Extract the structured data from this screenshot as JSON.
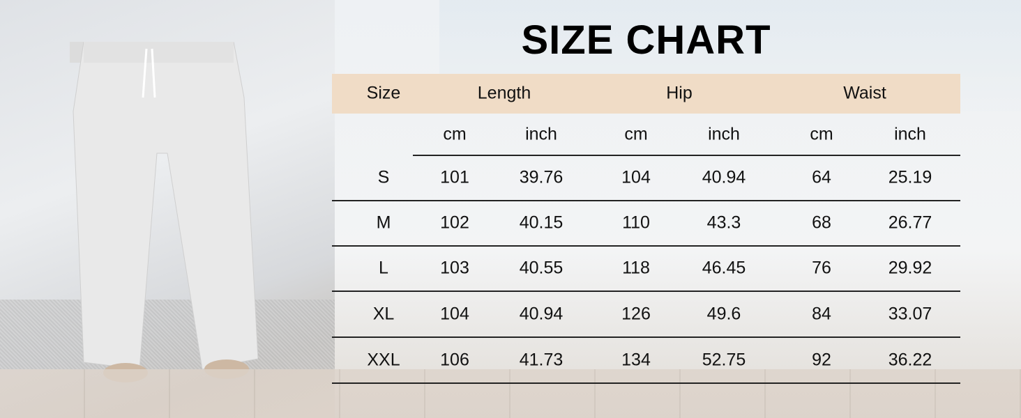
{
  "title": "SIZE CHART",
  "colors": {
    "header_band": "#f0dcc6"
  },
  "chart_data": {
    "type": "table",
    "groups": [
      "Size",
      "Length",
      "Hip",
      "Waist"
    ],
    "units": [
      "cm",
      "inch",
      "cm",
      "inch",
      "cm",
      "inch"
    ],
    "rows": [
      [
        "S",
        "101",
        "39.76",
        "104",
        "40.94",
        "64",
        "25.19"
      ],
      [
        "M",
        "102",
        "40.15",
        "110",
        "43.3",
        "68",
        "26.77"
      ],
      [
        "L",
        "103",
        "40.55",
        "118",
        "46.45",
        "76",
        "29.92"
      ],
      [
        "XL",
        "104",
        "40.94",
        "126",
        "49.6",
        "84",
        "33.07"
      ],
      [
        "XXL",
        "106",
        "41.73",
        "134",
        "52.75",
        "92",
        "36.22"
      ]
    ]
  }
}
